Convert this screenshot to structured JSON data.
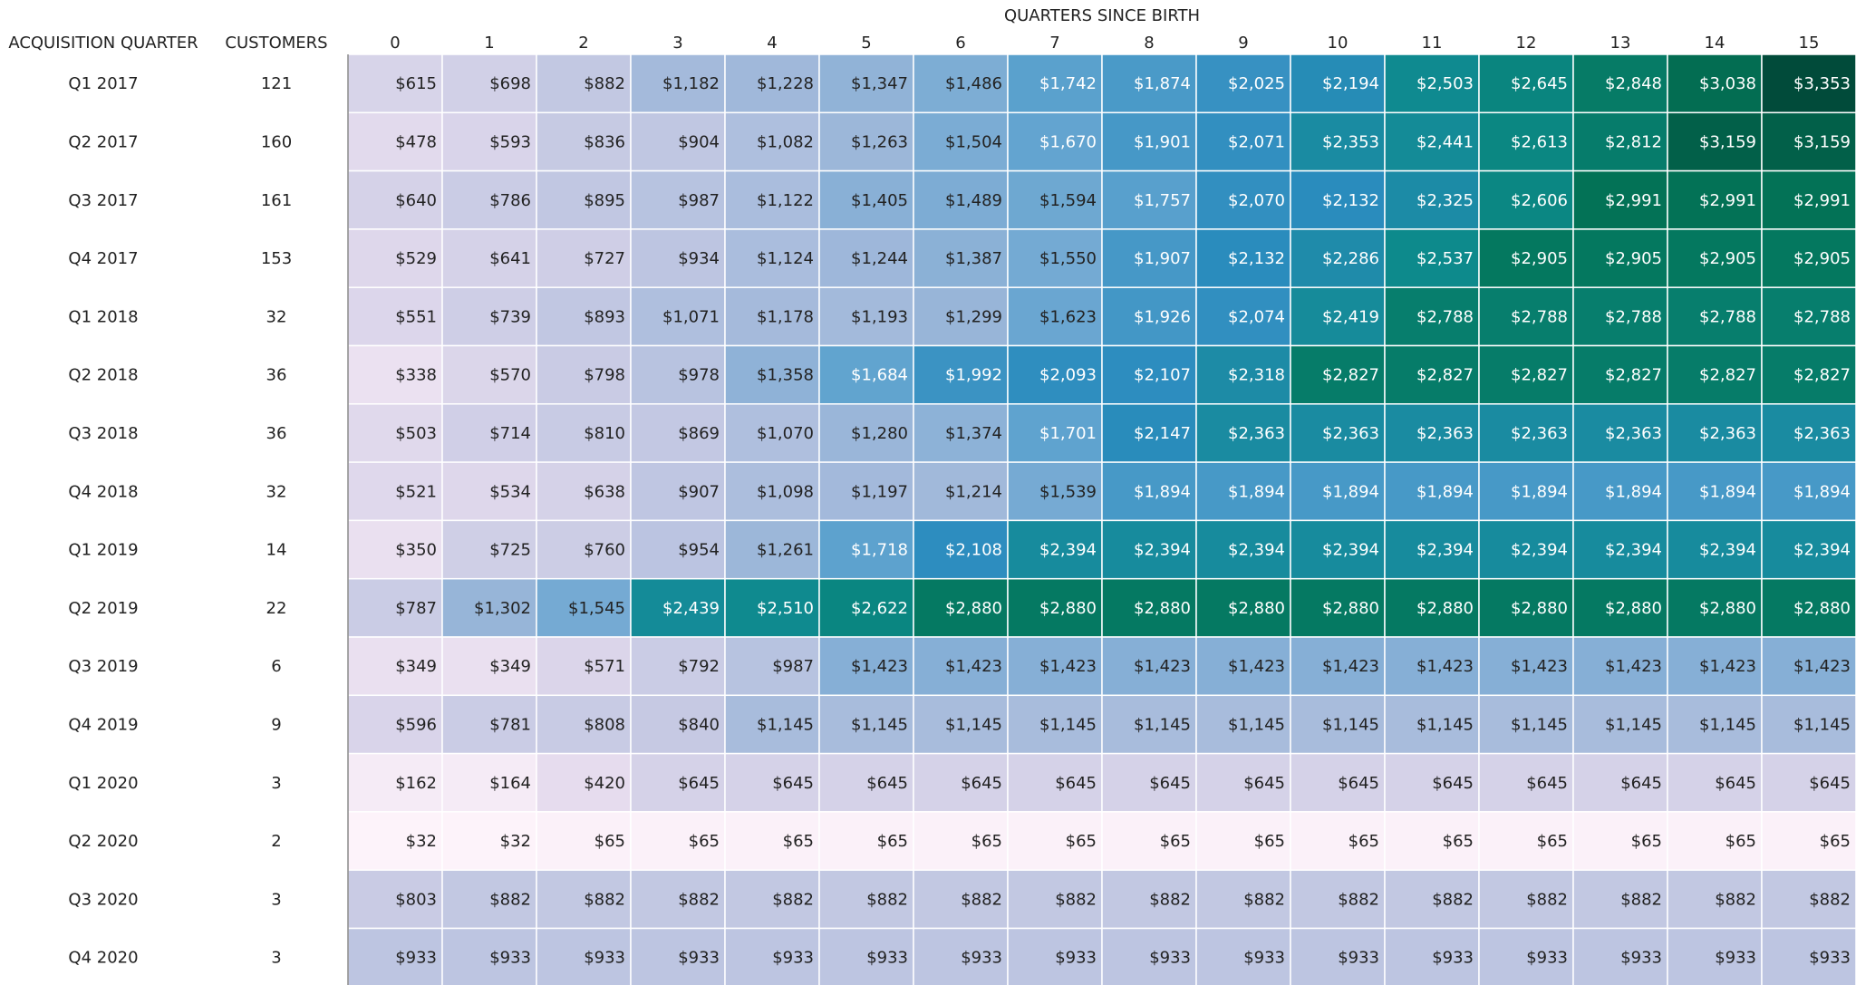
{
  "chart_data": {
    "type": "heatmap",
    "title": "",
    "x_title": "QUARTERS SINCE BIRTH",
    "row_header": "ACQUISITION QUARTER",
    "customers_header": "CUSTOMERS",
    "columns": [
      "0",
      "1",
      "2",
      "3",
      "4",
      "5",
      "6",
      "7",
      "8",
      "9",
      "10",
      "11",
      "12",
      "13",
      "14",
      "15"
    ],
    "rows": [
      {
        "quarter": "Q1 2017",
        "customers": "121",
        "values": [
          615,
          698,
          882,
          1182,
          1228,
          1347,
          1486,
          1742,
          1874,
          2025,
          2194,
          2503,
          2645,
          2848,
          3038,
          3353
        ]
      },
      {
        "quarter": "Q2 2017",
        "customers": "160",
        "values": [
          478,
          593,
          836,
          904,
          1082,
          1263,
          1504,
          1670,
          1901,
          2071,
          2353,
          2441,
          2613,
          2812,
          3159,
          3159
        ]
      },
      {
        "quarter": "Q3 2017",
        "customers": "161",
        "values": [
          640,
          786,
          895,
          987,
          1122,
          1405,
          1489,
          1594,
          1757,
          2070,
          2132,
          2325,
          2606,
          2991,
          2991,
          2991
        ]
      },
      {
        "quarter": "Q4 2017",
        "customers": "153",
        "values": [
          529,
          641,
          727,
          934,
          1124,
          1244,
          1387,
          1550,
          1907,
          2132,
          2286,
          2537,
          2905,
          2905,
          2905,
          2905
        ]
      },
      {
        "quarter": "Q1 2018",
        "customers": "32",
        "values": [
          551,
          739,
          893,
          1071,
          1178,
          1193,
          1299,
          1623,
          1926,
          2074,
          2419,
          2788,
          2788,
          2788,
          2788,
          2788
        ]
      },
      {
        "quarter": "Q2 2018",
        "customers": "36",
        "values": [
          338,
          570,
          798,
          978,
          1358,
          1684,
          1992,
          2093,
          2107,
          2318,
          2827,
          2827,
          2827,
          2827,
          2827,
          2827
        ]
      },
      {
        "quarter": "Q3 2018",
        "customers": "36",
        "values": [
          503,
          714,
          810,
          869,
          1070,
          1280,
          1374,
          1701,
          2147,
          2363,
          2363,
          2363,
          2363,
          2363,
          2363,
          2363
        ]
      },
      {
        "quarter": "Q4 2018",
        "customers": "32",
        "values": [
          521,
          534,
          638,
          907,
          1098,
          1197,
          1214,
          1539,
          1894,
          1894,
          1894,
          1894,
          1894,
          1894,
          1894,
          1894
        ]
      },
      {
        "quarter": "Q1 2019",
        "customers": "14",
        "values": [
          350,
          725,
          760,
          954,
          1261,
          1718,
          2108,
          2394,
          2394,
          2394,
          2394,
          2394,
          2394,
          2394,
          2394,
          2394
        ]
      },
      {
        "quarter": "Q2 2019",
        "customers": "22",
        "values": [
          787,
          1302,
          1545,
          2439,
          2510,
          2622,
          2880,
          2880,
          2880,
          2880,
          2880,
          2880,
          2880,
          2880,
          2880,
          2880
        ]
      },
      {
        "quarter": "Q3 2019",
        "customers": "6",
        "values": [
          349,
          349,
          571,
          792,
          987,
          1423,
          1423,
          1423,
          1423,
          1423,
          1423,
          1423,
          1423,
          1423,
          1423,
          1423
        ]
      },
      {
        "quarter": "Q4 2019",
        "customers": "9",
        "values": [
          596,
          781,
          808,
          840,
          1145,
          1145,
          1145,
          1145,
          1145,
          1145,
          1145,
          1145,
          1145,
          1145,
          1145,
          1145
        ]
      },
      {
        "quarter": "Q1 2020",
        "customers": "3",
        "values": [
          162,
          164,
          420,
          645,
          645,
          645,
          645,
          645,
          645,
          645,
          645,
          645,
          645,
          645,
          645,
          645
        ]
      },
      {
        "quarter": "Q2 2020",
        "customers": "2",
        "values": [
          32,
          32,
          65,
          65,
          65,
          65,
          65,
          65,
          65,
          65,
          65,
          65,
          65,
          65,
          65,
          65
        ]
      },
      {
        "quarter": "Q3 2020",
        "customers": "3",
        "values": [
          803,
          882,
          882,
          882,
          882,
          882,
          882,
          882,
          882,
          882,
          882,
          882,
          882,
          882,
          882,
          882
        ]
      },
      {
        "quarter": "Q4 2020",
        "customers": "3",
        "values": [
          933,
          933,
          933,
          933,
          933,
          933,
          933,
          933,
          933,
          933,
          933,
          933,
          933,
          933,
          933,
          933
        ]
      }
    ],
    "value_prefix": "$",
    "color_range": [
      0,
      3400
    ],
    "color_scale": [
      "#fff5fb",
      "#e6dcee",
      "#c5c9e3",
      "#9bb6d9",
      "#5fa3cf",
      "#2b8cbe",
      "#0c8a8a",
      "#037457",
      "#014636"
    ],
    "grid": true,
    "legend": "none"
  }
}
